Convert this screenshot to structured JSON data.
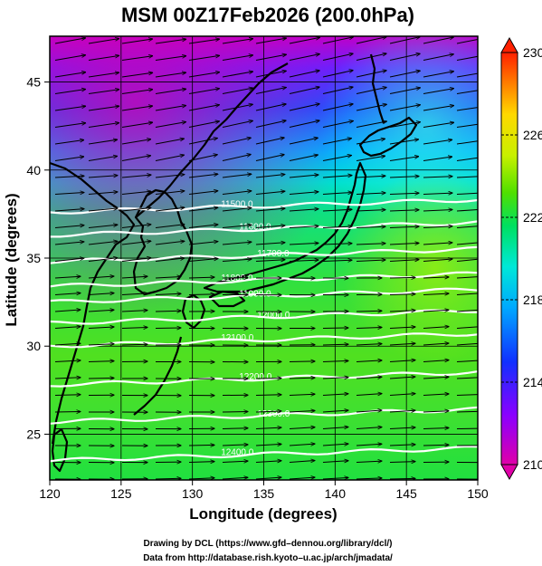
{
  "title": "MSM 00Z17Feb2026 (200.0hPa)",
  "x_axis": {
    "label": "Longitude (degrees)",
    "ticks": [
      "120",
      "125",
      "130",
      "135",
      "140",
      "145",
      "150"
    ],
    "range": [
      120,
      150
    ]
  },
  "y_axis": {
    "label": "Latitude  (degrees)",
    "ticks": [
      "25",
      "30",
      "35",
      "40",
      "45"
    ],
    "range": [
      22.4,
      47.6
    ]
  },
  "colorbar": {
    "ticks": [
      "210",
      "214",
      "218",
      "222",
      "226",
      "230"
    ],
    "min": 210,
    "max": 230,
    "colors": [
      "#e000a8",
      "#8a00ff",
      "#1030ff",
      "#00a8ff",
      "#00e8d8",
      "#00e060",
      "#50e000",
      "#c8f000",
      "#ffd800",
      "#ff7800",
      "#ff2000"
    ]
  },
  "contours": [
    {
      "label": "11500.0",
      "lat": 37.6
    },
    {
      "label": "11600.0",
      "lat": 36.3
    },
    {
      "label": "11700.0",
      "lat": 34.8
    },
    {
      "label": "11800.0",
      "lat": 33.4
    },
    {
      "label": "11900.0",
      "lat": 32.5
    },
    {
      "label": "12000.0",
      "lat": 31.3
    },
    {
      "label": "12100.0",
      "lat": 30.0
    },
    {
      "label": "12200.0",
      "lat": 27.8
    },
    {
      "label": "12300.0",
      "lat": 25.7
    },
    {
      "label": "12400.0",
      "lat": 23.5
    }
  ],
  "credits": {
    "line1": "Drawing by DCL (https://www.gfd–dennou.org/library/dcl/)",
    "line2": "Data from http://database.rish.kyoto–u.ac.jp/arch/jmadata/"
  }
}
